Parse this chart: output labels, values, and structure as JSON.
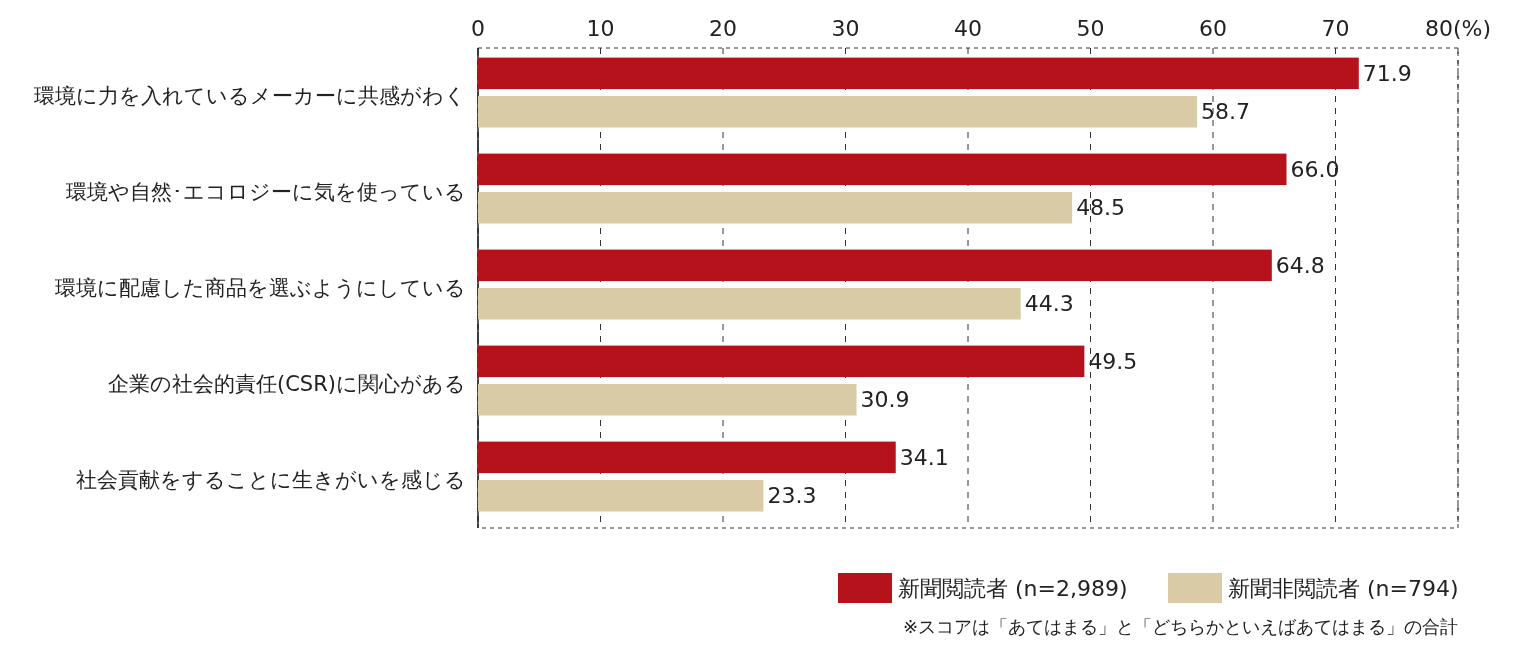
{
  "chart_data": {
    "type": "bar",
    "orientation": "horizontal",
    "categories": [
      "環境に力を入れているメーカーに共感がわく",
      "環境や自然･エコロジーに気を使っている",
      "環境に配慮した商品を選ぶようにしている",
      "企業の社会的責任(CSR)に関心がある",
      "社会貢献をすることに生きがいを感じる"
    ],
    "series": [
      {
        "name": "新聞閲読者 (n=2,989)",
        "color": "#b5121b",
        "values": [
          71.9,
          66.0,
          64.8,
          49.5,
          34.1
        ],
        "value_labels": [
          "71.9",
          "66.0",
          "64.8",
          "49.5",
          "34.1"
        ]
      },
      {
        "name": "新聞非閲読者 (n=794)",
        "color": "#d9cba6",
        "values": [
          58.7,
          48.5,
          44.3,
          30.9,
          23.3
        ],
        "value_labels": [
          "58.7",
          "48.5",
          "44.3",
          "30.9",
          "23.3"
        ]
      }
    ],
    "xlim": [
      0,
      80
    ],
    "xticks": [
      0,
      10,
      20,
      30,
      40,
      50,
      60,
      70,
      {
        "value": 80,
        "label": "80(%)"
      }
    ],
    "grid": "x",
    "legend": "bottom right",
    "annotations": [
      "※スコアは「あてはまる」と「どちらかといえばあてはまる」の合計"
    ]
  }
}
